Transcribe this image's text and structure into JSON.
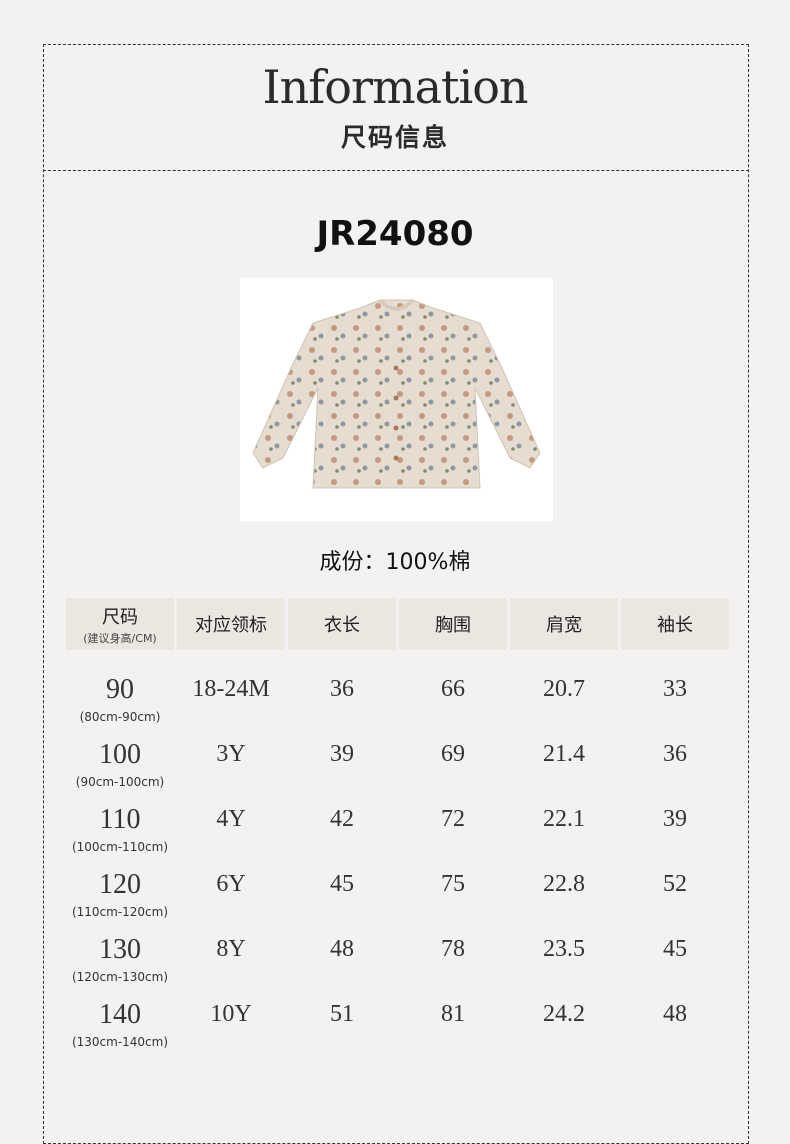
{
  "header": {
    "title_en": "Information",
    "title_cn": "尺码信息"
  },
  "product": {
    "code": "JR24080",
    "composition": "成份：100%棉",
    "image": "floral-blouse-photo"
  },
  "table": {
    "headers": [
      {
        "label": "尺码",
        "sub": "(建议身高/CM)"
      },
      {
        "label": "对应领标"
      },
      {
        "label": "衣长"
      },
      {
        "label": "胸围"
      },
      {
        "label": "肩宽"
      },
      {
        "label": "袖长"
      }
    ],
    "rows": [
      {
        "size": "90",
        "height": "(80cm-90cm)",
        "tag": "18-24M",
        "length": "36",
        "chest": "66",
        "shoulder": "20.7",
        "sleeve": "33"
      },
      {
        "size": "100",
        "height": "(90cm-100cm)",
        "tag": "3Y",
        "length": "39",
        "chest": "69",
        "shoulder": "21.4",
        "sleeve": "36"
      },
      {
        "size": "110",
        "height": "(100cm-110cm)",
        "tag": "4Y",
        "length": "42",
        "chest": "72",
        "shoulder": "22.1",
        "sleeve": "39"
      },
      {
        "size": "120",
        "height": "(110cm-120cm)",
        "tag": "6Y",
        "length": "45",
        "chest": "75",
        "shoulder": "22.8",
        "sleeve": "52"
      },
      {
        "size": "130",
        "height": "(120cm-130cm)",
        "tag": "8Y",
        "length": "48",
        "chest": "78",
        "shoulder": "23.5",
        "sleeve": "45"
      },
      {
        "size": "140",
        "height": "(130cm-140cm)",
        "tag": "10Y",
        "length": "51",
        "chest": "81",
        "shoulder": "24.2",
        "sleeve": "48"
      }
    ]
  }
}
